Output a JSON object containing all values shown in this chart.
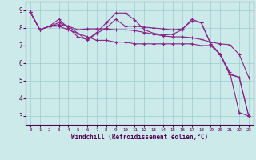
{
  "xlabel": "Windchill (Refroidissement éolien,°C)",
  "xlim": [
    -0.5,
    23.5
  ],
  "ylim": [
    2.5,
    9.5
  ],
  "ytick_vals": [
    3,
    4,
    5,
    6,
    7,
    8,
    9
  ],
  "bg_color": "#cceaea",
  "line_color": "#882288",
  "grid_color": "#99cccc",
  "xlabel_color": "#550055",
  "series": [
    [
      8.9,
      7.9,
      8.1,
      8.5,
      8.0,
      7.5,
      7.35,
      7.75,
      8.3,
      8.85,
      8.85,
      8.45,
      7.9,
      7.7,
      7.6,
      7.65,
      7.9,
      8.5,
      8.3,
      7.1,
      6.5,
      5.35,
      5.2,
      3.0
    ],
    [
      8.9,
      7.9,
      8.1,
      8.2,
      8.1,
      7.9,
      7.95,
      7.95,
      7.95,
      7.9,
      7.9,
      7.85,
      7.75,
      7.65,
      7.55,
      7.5,
      7.5,
      7.45,
      7.35,
      7.2,
      7.1,
      7.05,
      6.5,
      5.2
    ],
    [
      8.9,
      7.9,
      8.1,
      8.3,
      8.1,
      7.7,
      7.3,
      7.7,
      8.0,
      8.5,
      8.1,
      8.1,
      8.05,
      8.0,
      7.95,
      7.9,
      7.95,
      8.4,
      8.3,
      7.1,
      6.5,
      5.4,
      5.2,
      3.0
    ],
    [
      8.9,
      7.9,
      8.1,
      8.1,
      7.9,
      7.7,
      7.5,
      7.3,
      7.3,
      7.2,
      7.2,
      7.1,
      7.1,
      7.1,
      7.1,
      7.1,
      7.1,
      7.1,
      7.0,
      7.0,
      6.5,
      5.5,
      3.2,
      3.0
    ]
  ]
}
